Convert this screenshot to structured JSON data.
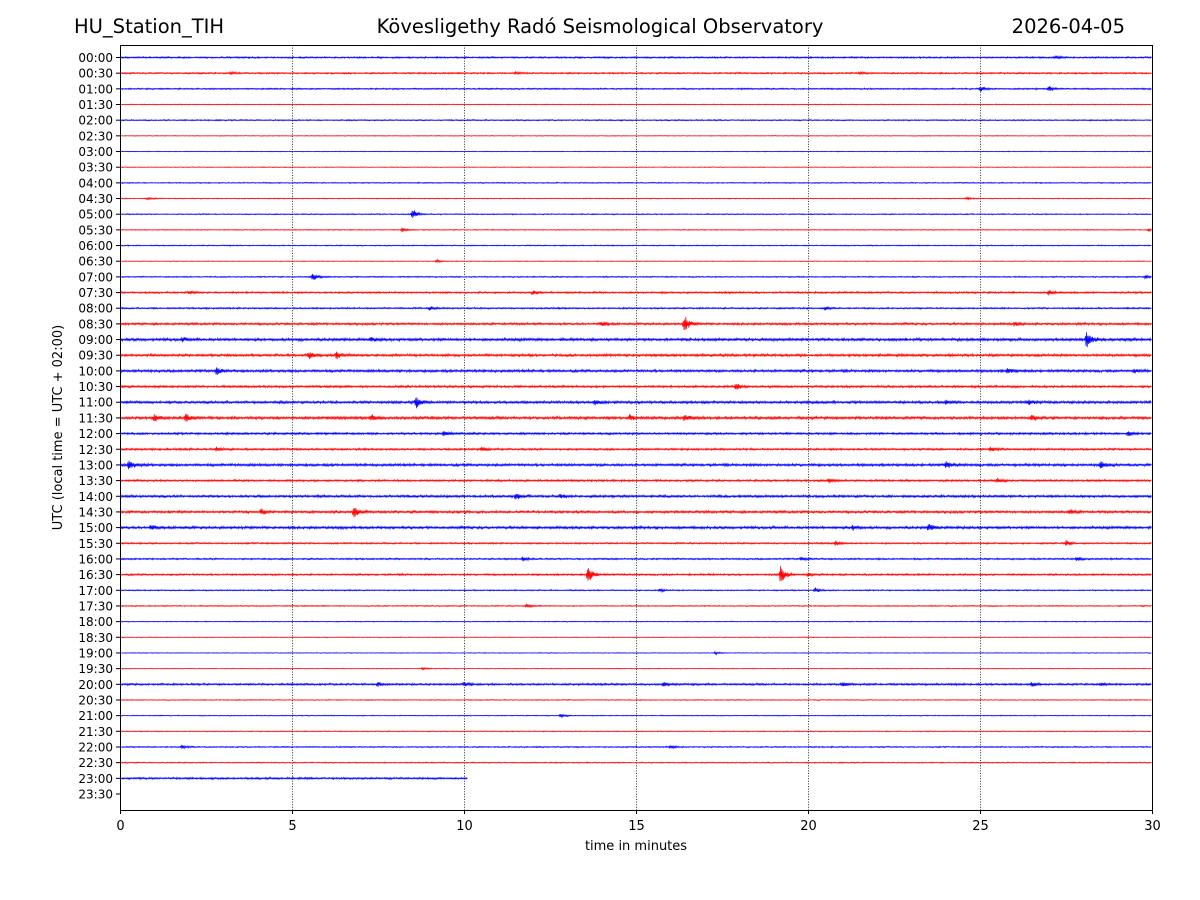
{
  "header": {
    "station": "HU_Station_TIH",
    "observatory": "Kövesligethy Radó Seismological Observatory",
    "date": "2026-04-05"
  },
  "chart_data": {
    "type": "line",
    "title": "Kövesligethy Radó Seismological Observatory",
    "xlabel": "time in minutes",
    "ylabel": "UTC (local time = UTC + 02:00)",
    "xlim": [
      0,
      30
    ],
    "x_ticks": [
      0,
      5,
      10,
      15,
      20,
      25,
      30
    ],
    "x_tick_labels": [
      "0",
      "5",
      "10",
      "15",
      "20",
      "25",
      "30"
    ],
    "vertical_gridlines_at": [
      5,
      10,
      15,
      20,
      25
    ],
    "colors": {
      "even_rows": "#0000ff",
      "odd_rows": "#ff0000",
      "axes": "#000000",
      "grid": "#000000"
    },
    "rows": [
      {
        "label": "00:00",
        "color": "blue",
        "base_amp": 0.9,
        "end_min": 30,
        "events": [
          {
            "t": 27.2,
            "amp": 2
          }
        ]
      },
      {
        "label": "00:30",
        "color": "red",
        "base_amp": 0.9,
        "end_min": 30,
        "events": [
          {
            "t": 3.2,
            "amp": 1.4
          },
          {
            "t": 11.5,
            "amp": 1.4
          },
          {
            "t": 21.5,
            "amp": 1.3
          }
        ]
      },
      {
        "label": "01:00",
        "color": "blue",
        "base_amp": 0.8,
        "end_min": 30,
        "events": [
          {
            "t": 25.0,
            "amp": 3
          },
          {
            "t": 27.0,
            "amp": 3
          }
        ]
      },
      {
        "label": "01:30",
        "color": "red",
        "base_amp": 0.5,
        "end_min": 30,
        "events": []
      },
      {
        "label": "02:00",
        "color": "blue",
        "base_amp": 0.7,
        "end_min": 30,
        "events": []
      },
      {
        "label": "02:30",
        "color": "red",
        "base_amp": 0.4,
        "end_min": 30,
        "events": []
      },
      {
        "label": "03:00",
        "color": "blue",
        "base_amp": 0.4,
        "end_min": 30,
        "events": []
      },
      {
        "label": "03:30",
        "color": "red",
        "base_amp": 0.4,
        "end_min": 30,
        "events": []
      },
      {
        "label": "04:00",
        "color": "blue",
        "base_amp": 0.6,
        "end_min": 30,
        "events": []
      },
      {
        "label": "04:30",
        "color": "red",
        "base_amp": 0.5,
        "end_min": 30,
        "events": [
          {
            "t": 0.8,
            "amp": 1.5
          },
          {
            "t": 24.6,
            "amp": 1.5
          }
        ]
      },
      {
        "label": "05:00",
        "color": "blue",
        "base_amp": 0.6,
        "end_min": 30,
        "events": [
          {
            "t": 8.5,
            "amp": 7
          }
        ]
      },
      {
        "label": "05:30",
        "color": "red",
        "base_amp": 0.5,
        "end_min": 30,
        "events": [
          {
            "t": 8.2,
            "amp": 2.5
          },
          {
            "t": 29.9,
            "amp": 2
          }
        ]
      },
      {
        "label": "06:00",
        "color": "blue",
        "base_amp": 0.6,
        "end_min": 30,
        "events": []
      },
      {
        "label": "06:30",
        "color": "red",
        "base_amp": 0.4,
        "end_min": 30,
        "events": [
          {
            "t": 9.2,
            "amp": 1.5
          }
        ]
      },
      {
        "label": "07:00",
        "color": "blue",
        "base_amp": 0.7,
        "end_min": 30,
        "events": [
          {
            "t": 5.6,
            "amp": 5
          },
          {
            "t": 29.8,
            "amp": 2
          }
        ]
      },
      {
        "label": "07:30",
        "color": "red",
        "base_amp": 1.0,
        "end_min": 30,
        "events": [
          {
            "t": 2.0,
            "amp": 2
          },
          {
            "t": 12.0,
            "amp": 2.5
          },
          {
            "t": 27.0,
            "amp": 3
          }
        ]
      },
      {
        "label": "08:00",
        "color": "blue",
        "base_amp": 0.9,
        "end_min": 30,
        "events": [
          {
            "t": 9.0,
            "amp": 2
          },
          {
            "t": 20.5,
            "amp": 2
          }
        ]
      },
      {
        "label": "08:30",
        "color": "red",
        "base_amp": 1.2,
        "end_min": 30,
        "events": [
          {
            "t": 14.0,
            "amp": 3
          },
          {
            "t": 16.4,
            "amp": 11
          },
          {
            "t": 26.0,
            "amp": 2
          }
        ]
      },
      {
        "label": "09:00",
        "color": "blue",
        "base_amp": 1.5,
        "end_min": 30,
        "events": [
          {
            "t": 1.8,
            "amp": 2.5
          },
          {
            "t": 7.3,
            "amp": 2
          },
          {
            "t": 28.1,
            "amp": 11
          }
        ]
      },
      {
        "label": "09:30",
        "color": "red",
        "base_amp": 1.4,
        "end_min": 30,
        "events": [
          {
            "t": 5.5,
            "amp": 4
          },
          {
            "t": 6.3,
            "amp": 4
          }
        ]
      },
      {
        "label": "10:00",
        "color": "blue",
        "base_amp": 1.4,
        "end_min": 30,
        "events": [
          {
            "t": 2.8,
            "amp": 4.5
          },
          {
            "t": 25.8,
            "amp": 3
          },
          {
            "t": 29.5,
            "amp": 2
          }
        ]
      },
      {
        "label": "10:30",
        "color": "red",
        "base_amp": 1.2,
        "end_min": 30,
        "events": [
          {
            "t": 17.9,
            "amp": 4
          }
        ]
      },
      {
        "label": "11:00",
        "color": "blue",
        "base_amp": 1.4,
        "end_min": 30,
        "events": [
          {
            "t": 8.6,
            "amp": 7
          },
          {
            "t": 13.8,
            "amp": 3
          },
          {
            "t": 24.0,
            "amp": 3
          },
          {
            "t": 26.4,
            "amp": 3
          }
        ]
      },
      {
        "label": "11:30",
        "color": "red",
        "base_amp": 1.5,
        "end_min": 30,
        "events": [
          {
            "t": 1.0,
            "amp": 4.5
          },
          {
            "t": 1.9,
            "amp": 5
          },
          {
            "t": 7.3,
            "amp": 4
          },
          {
            "t": 14.8,
            "amp": 3
          },
          {
            "t": 16.4,
            "amp": 4
          },
          {
            "t": 26.5,
            "amp": 3.5
          }
        ]
      },
      {
        "label": "12:00",
        "color": "blue",
        "base_amp": 1.2,
        "end_min": 30,
        "events": [
          {
            "t": 9.4,
            "amp": 3
          },
          {
            "t": 29.3,
            "amp": 2.5
          }
        ]
      },
      {
        "label": "12:30",
        "color": "red",
        "base_amp": 1.1,
        "end_min": 30,
        "events": [
          {
            "t": 2.8,
            "amp": 3
          },
          {
            "t": 10.5,
            "amp": 3
          },
          {
            "t": 25.3,
            "amp": 2.5
          }
        ]
      },
      {
        "label": "13:00",
        "color": "blue",
        "base_amp": 1.4,
        "end_min": 30,
        "events": [
          {
            "t": 0.25,
            "amp": 6
          },
          {
            "t": 24.0,
            "amp": 4
          },
          {
            "t": 28.5,
            "amp": 4
          }
        ]
      },
      {
        "label": "13:30",
        "color": "red",
        "base_amp": 1.1,
        "end_min": 30,
        "events": [
          {
            "t": 20.6,
            "amp": 2.5
          },
          {
            "t": 25.5,
            "amp": 2.5
          }
        ]
      },
      {
        "label": "14:00",
        "color": "blue",
        "base_amp": 1.3,
        "end_min": 30,
        "events": [
          {
            "t": 11.5,
            "amp": 4
          },
          {
            "t": 12.8,
            "amp": 2.5
          }
        ]
      },
      {
        "label": "14:30",
        "color": "red",
        "base_amp": 1.3,
        "end_min": 30,
        "events": [
          {
            "t": 4.1,
            "amp": 4
          },
          {
            "t": 6.8,
            "amp": 8
          },
          {
            "t": 27.6,
            "amp": 3
          }
        ]
      },
      {
        "label": "15:00",
        "color": "blue",
        "base_amp": 1.4,
        "end_min": 30,
        "events": [
          {
            "t": 0.9,
            "amp": 3
          },
          {
            "t": 21.3,
            "amp": 2.5
          },
          {
            "t": 23.5,
            "amp": 5
          }
        ]
      },
      {
        "label": "15:30",
        "color": "red",
        "base_amp": 0.9,
        "end_min": 30,
        "events": [
          {
            "t": 20.8,
            "amp": 3
          },
          {
            "t": 27.5,
            "amp": 3
          }
        ]
      },
      {
        "label": "16:00",
        "color": "blue",
        "base_amp": 0.9,
        "end_min": 30,
        "events": [
          {
            "t": 11.7,
            "amp": 2.5
          },
          {
            "t": 19.8,
            "amp": 2.5
          },
          {
            "t": 27.8,
            "amp": 3
          }
        ]
      },
      {
        "label": "16:30",
        "color": "red",
        "base_amp": 1.0,
        "end_min": 30,
        "events": [
          {
            "t": 13.6,
            "amp": 11
          },
          {
            "t": 19.2,
            "amp": 11
          },
          {
            "t": 20.0,
            "amp": 2
          }
        ]
      },
      {
        "label": "17:00",
        "color": "blue",
        "base_amp": 0.7,
        "end_min": 30,
        "events": [
          {
            "t": 15.7,
            "amp": 2
          },
          {
            "t": 20.2,
            "amp": 3
          }
        ]
      },
      {
        "label": "17:30",
        "color": "red",
        "base_amp": 0.6,
        "end_min": 30,
        "events": [
          {
            "t": 11.8,
            "amp": 2.5
          }
        ]
      },
      {
        "label": "18:00",
        "color": "blue",
        "base_amp": 0.5,
        "end_min": 30,
        "events": []
      },
      {
        "label": "18:30",
        "color": "red",
        "base_amp": 0.4,
        "end_min": 30,
        "events": []
      },
      {
        "label": "19:00",
        "color": "blue",
        "base_amp": 0.4,
        "end_min": 30,
        "events": [
          {
            "t": 17.3,
            "amp": 1.5
          }
        ]
      },
      {
        "label": "19:30",
        "color": "red",
        "base_amp": 0.4,
        "end_min": 30,
        "events": [
          {
            "t": 8.8,
            "amp": 1.5
          }
        ]
      },
      {
        "label": "20:00",
        "color": "blue",
        "base_amp": 1.1,
        "end_min": 30,
        "events": [
          {
            "t": 7.5,
            "amp": 2.5
          },
          {
            "t": 10.0,
            "amp": 2.5
          },
          {
            "t": 15.8,
            "amp": 2.5
          },
          {
            "t": 21.0,
            "amp": 2.5
          },
          {
            "t": 26.5,
            "amp": 2.5
          },
          {
            "t": 28.5,
            "amp": 2
          }
        ]
      },
      {
        "label": "20:30",
        "color": "red",
        "base_amp": 0.5,
        "end_min": 30,
        "events": []
      },
      {
        "label": "21:00",
        "color": "blue",
        "base_amp": 0.5,
        "end_min": 30,
        "events": [
          {
            "t": 12.8,
            "amp": 2.5
          }
        ]
      },
      {
        "label": "21:30",
        "color": "red",
        "base_amp": 0.5,
        "end_min": 30,
        "events": []
      },
      {
        "label": "22:00",
        "color": "blue",
        "base_amp": 0.7,
        "end_min": 30,
        "events": [
          {
            "t": 1.8,
            "amp": 2
          },
          {
            "t": 16.0,
            "amp": 2
          }
        ]
      },
      {
        "label": "22:30",
        "color": "red",
        "base_amp": 0.6,
        "end_min": 30,
        "events": []
      },
      {
        "label": "23:00",
        "color": "blue",
        "base_amp": 1.1,
        "end_min": 10.1,
        "events": []
      },
      {
        "label": "23:30",
        "color": "red",
        "base_amp": 0,
        "end_min": 0,
        "events": []
      }
    ]
  }
}
